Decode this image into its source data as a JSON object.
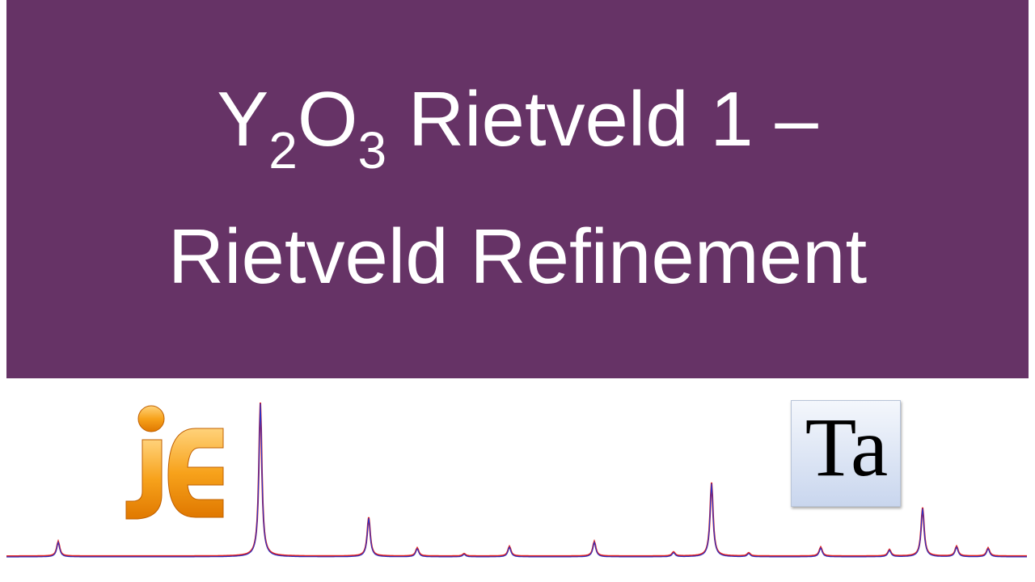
{
  "title": {
    "line1": {
      "y": "Y",
      "y_sub": "2",
      "o": "O",
      "o_sub": "3",
      "rest": " Rietveld 1 –"
    },
    "line2": "Rietveld Refinement"
  },
  "logo_text": "Ta"
}
